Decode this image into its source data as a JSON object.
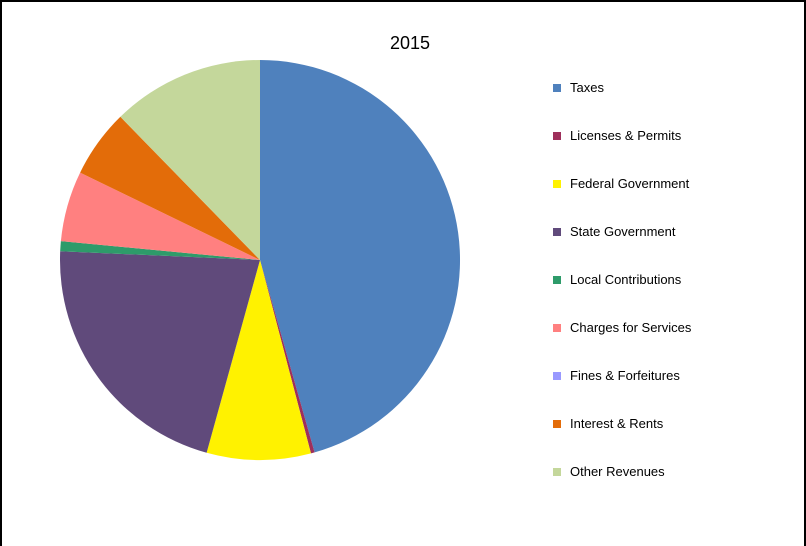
{
  "chart_data": {
    "type": "pie",
    "title": "2015",
    "legend_position": "right",
    "categories": [
      "Taxes",
      "Licenses & Permits",
      "Federal Government",
      "State Government",
      "Local Contributions",
      "Charges for Services",
      "Fines & Forfeitures",
      "Interest & Rents",
      "Other Revenues"
    ],
    "values": [
      45.6,
      0.3,
      8.4,
      21.4,
      0.8,
      5.7,
      0.0,
      5.5,
      12.3
    ],
    "unit": "percent of total",
    "colors": [
      "#4F81BD",
      "#9E2F5B",
      "#FFF200",
      "#604A7B",
      "#2E9B6A",
      "#FF8080",
      "#9999FF",
      "#E36C09",
      "#C4D79B"
    ]
  }
}
